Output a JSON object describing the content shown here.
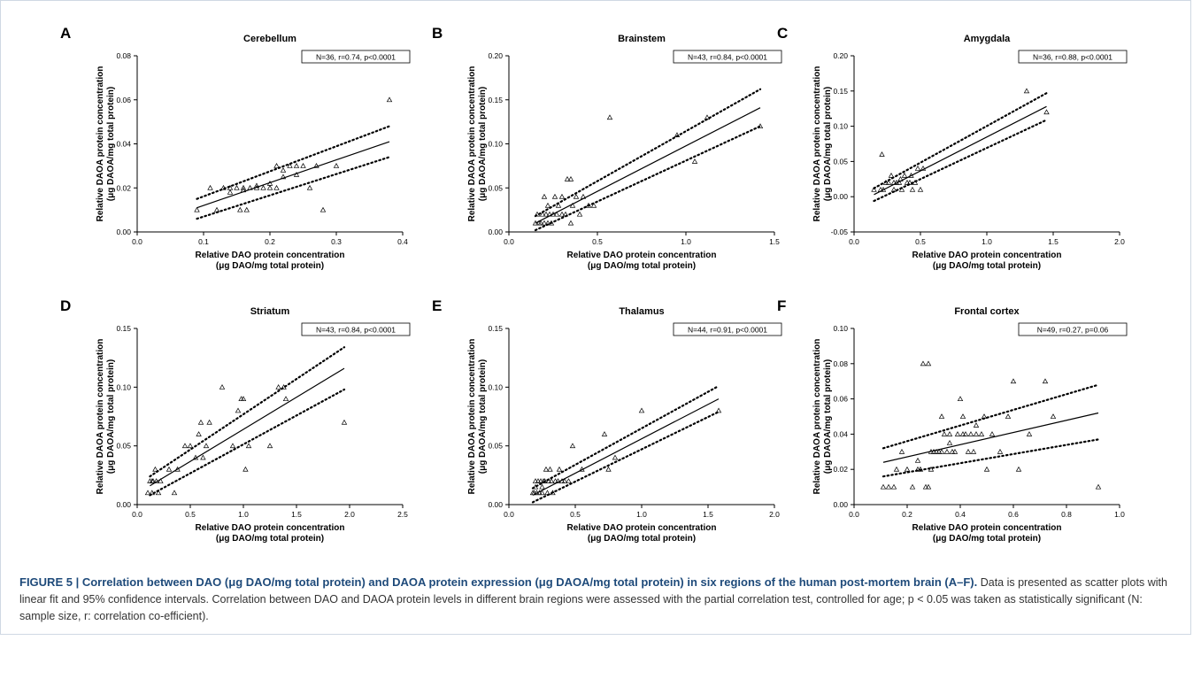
{
  "caption": {
    "label": "FIGURE 5 | ",
    "bold_text": "Correlation between DAO (μg DAO/mg total protein) and DAOA protein expression (μg DAOA/mg total protein) in six regions of the human post-mortem brain (A–F).",
    "body_text": " Data is presented as scatter plots with linear fit and 95% confidence intervals. Correlation between DAO and DAOA protein levels in different brain regions were assessed with the partial correlation test, controlled for age; p < 0.05 was taken as statistically significant (N: sample size, r: correlation co-efficient)."
  },
  "colors": {
    "caption_bold": "#1e4a7a",
    "frame": "#cfd8e3",
    "ink": "#000000"
  },
  "chart_data": [
    {
      "type": "scatter",
      "panel_letter": "A",
      "title": "Cerebellum",
      "xlabel": "Relative DAO protein concentration",
      "xlabel2": "(μg DAO/mg total protein)",
      "ylabel": "Relative DAOA protein concentration",
      "ylabel2": "(μg DAOA/mg total protein)",
      "annotation": "N=36, r=0.74, p<0.0001",
      "xlim": [
        0.0,
        0.4
      ],
      "ylim": [
        0.0,
        0.08
      ],
      "xticks": [
        "0.0",
        "0.1",
        "0.2",
        "0.3",
        "0.4"
      ],
      "yticks": [
        "0.00",
        "0.02",
        "0.04",
        "0.06",
        "0.08"
      ],
      "grid": false,
      "fit": [
        [
          0.09,
          0.011
        ],
        [
          0.38,
          0.041
        ]
      ],
      "ci_upper": [
        [
          0.09,
          0.015
        ],
        [
          0.38,
          0.048
        ]
      ],
      "ci_lower": [
        [
          0.09,
          0.006
        ],
        [
          0.38,
          0.034
        ]
      ],
      "points": [
        [
          0.09,
          0.01
        ],
        [
          0.11,
          0.02
        ],
        [
          0.12,
          0.01
        ],
        [
          0.13,
          0.02
        ],
        [
          0.14,
          0.02
        ],
        [
          0.15,
          0.02
        ],
        [
          0.155,
          0.01
        ],
        [
          0.16,
          0.02
        ],
        [
          0.165,
          0.01
        ],
        [
          0.17,
          0.02
        ],
        [
          0.18,
          0.02
        ],
        [
          0.19,
          0.02
        ],
        [
          0.2,
          0.02
        ],
        [
          0.21,
          0.03
        ],
        [
          0.21,
          0.02
        ],
        [
          0.22,
          0.025
        ],
        [
          0.23,
          0.03
        ],
        [
          0.24,
          0.03
        ],
        [
          0.25,
          0.03
        ],
        [
          0.26,
          0.02
        ],
        [
          0.27,
          0.03
        ],
        [
          0.28,
          0.01
        ],
        [
          0.3,
          0.03
        ],
        [
          0.38,
          0.06
        ],
        [
          0.2,
          0.022
        ],
        [
          0.22,
          0.028
        ],
        [
          0.24,
          0.026
        ],
        [
          0.16,
          0.019
        ],
        [
          0.18,
          0.021
        ],
        [
          0.14,
          0.018
        ]
      ]
    },
    {
      "type": "scatter",
      "panel_letter": "B",
      "title": "Brainstem",
      "xlabel": "Relative DAO protein concentration",
      "xlabel2": "(μg DAO/mg total protein)",
      "ylabel": "Relative DAOA protein concentration",
      "ylabel2": "(μg DAOA/mg total protein)",
      "annotation": "N=43, r=0.84, p<0.0001",
      "xlim": [
        0.0,
        1.5
      ],
      "ylim": [
        0.0,
        0.2
      ],
      "xticks": [
        "0.0",
        "0.5",
        "1.0",
        "1.5"
      ],
      "yticks": [
        "0.00",
        "0.05",
        "0.10",
        "0.15",
        "0.20"
      ],
      "grid": false,
      "fit": [
        [
          0.15,
          0.01
        ],
        [
          1.42,
          0.141
        ]
      ],
      "ci_upper": [
        [
          0.15,
          0.018
        ],
        [
          1.42,
          0.162
        ]
      ],
      "ci_lower": [
        [
          0.15,
          0.002
        ],
        [
          1.42,
          0.12
        ]
      ],
      "points": [
        [
          0.15,
          0.01
        ],
        [
          0.16,
          0.02
        ],
        [
          0.17,
          0.01
        ],
        [
          0.18,
          0.01
        ],
        [
          0.19,
          0.02
        ],
        [
          0.2,
          0.04
        ],
        [
          0.2,
          0.01
        ],
        [
          0.21,
          0.02
        ],
        [
          0.22,
          0.03
        ],
        [
          0.23,
          0.02
        ],
        [
          0.24,
          0.01
        ],
        [
          0.25,
          0.02
        ],
        [
          0.26,
          0.04
        ],
        [
          0.27,
          0.02
        ],
        [
          0.28,
          0.03
        ],
        [
          0.3,
          0.04
        ],
        [
          0.32,
          0.02
        ],
        [
          0.33,
          0.06
        ],
        [
          0.35,
          0.06
        ],
        [
          0.36,
          0.03
        ],
        [
          0.38,
          0.04
        ],
        [
          0.4,
          0.02
        ],
        [
          0.42,
          0.04
        ],
        [
          0.45,
          0.03
        ],
        [
          0.48,
          0.03
        ],
        [
          0.57,
          0.13
        ],
        [
          0.95,
          0.11
        ],
        [
          1.05,
          0.08
        ],
        [
          1.12,
          0.13
        ],
        [
          1.42,
          0.12
        ],
        [
          0.3,
          0.02
        ],
        [
          0.35,
          0.01
        ],
        [
          0.22,
          0.01
        ]
      ]
    },
    {
      "type": "scatter",
      "panel_letter": "C",
      "title": "Amygdala",
      "xlabel": "Relative DAO protein concentration",
      "xlabel2": "(μg DAO/mg total protein)",
      "ylabel": "Relative DAOA protein concentration",
      "ylabel2": "(μg DAOA/mg total protein)",
      "annotation": "N=36, r=0.88, p<0.0001",
      "xlim": [
        0.0,
        2.0
      ],
      "ylim": [
        -0.05,
        0.2
      ],
      "xticks": [
        "0.0",
        "0.5",
        "1.0",
        "1.5",
        "2.0"
      ],
      "yticks": [
        "-0.05",
        "0.00",
        "0.05",
        "0.10",
        "0.15",
        "0.20"
      ],
      "grid": false,
      "fit": [
        [
          0.15,
          0.003
        ],
        [
          1.45,
          0.128
        ]
      ],
      "ci_upper": [
        [
          0.15,
          0.012
        ],
        [
          1.45,
          0.147
        ]
      ],
      "ci_lower": [
        [
          0.15,
          -0.006
        ],
        [
          1.45,
          0.109
        ]
      ],
      "points": [
        [
          0.15,
          0.01
        ],
        [
          0.2,
          0.01
        ],
        [
          0.21,
          0.06
        ],
        [
          0.22,
          0.01
        ],
        [
          0.24,
          0.02
        ],
        [
          0.26,
          0.02
        ],
        [
          0.28,
          0.03
        ],
        [
          0.3,
          0.01
        ],
        [
          0.32,
          0.02
        ],
        [
          0.34,
          0.02
        ],
        [
          0.36,
          0.01
        ],
        [
          0.38,
          0.03
        ],
        [
          0.4,
          0.02
        ],
        [
          0.42,
          0.02
        ],
        [
          0.44,
          0.01
        ],
        [
          0.46,
          0.02
        ],
        [
          0.48,
          0.04
        ],
        [
          0.5,
          0.01
        ],
        [
          0.52,
          0.04
        ],
        [
          1.3,
          0.15
        ],
        [
          1.45,
          0.12
        ],
        [
          0.3,
          0.02
        ],
        [
          0.35,
          0.025
        ],
        [
          0.43,
          0.03
        ]
      ]
    },
    {
      "type": "scatter",
      "panel_letter": "D",
      "title": "Striatum",
      "xlabel": "Relative DAO protein concentration",
      "xlabel2": "(μg DAO/mg total protein)",
      "ylabel": "Relative DAOA protein concentration",
      "ylabel2": "(μg DAOA/mg total protein)",
      "annotation": "N=43, r=0.84, p<0.0001",
      "xlim": [
        0.0,
        2.5
      ],
      "ylim": [
        0.0,
        0.15
      ],
      "xticks": [
        "0.0",
        "0.5",
        "1.0",
        "1.5",
        "2.0",
        "2.5"
      ],
      "yticks": [
        "0.00",
        "0.05",
        "0.10",
        "0.15"
      ],
      "grid": false,
      "fit": [
        [
          0.12,
          0.016
        ],
        [
          1.95,
          0.116
        ]
      ],
      "ci_upper": [
        [
          0.12,
          0.024
        ],
        [
          1.95,
          0.134
        ]
      ],
      "ci_lower": [
        [
          0.12,
          0.008
        ],
        [
          1.95,
          0.098
        ]
      ],
      "points": [
        [
          0.1,
          0.01
        ],
        [
          0.12,
          0.02
        ],
        [
          0.14,
          0.01
        ],
        [
          0.15,
          0.02
        ],
        [
          0.17,
          0.03
        ],
        [
          0.18,
          0.02
        ],
        [
          0.2,
          0.01
        ],
        [
          0.22,
          0.02
        ],
        [
          0.3,
          0.03
        ],
        [
          0.35,
          0.01
        ],
        [
          0.38,
          0.03
        ],
        [
          0.45,
          0.05
        ],
        [
          0.5,
          0.05
        ],
        [
          0.55,
          0.04
        ],
        [
          0.58,
          0.06
        ],
        [
          0.6,
          0.07
        ],
        [
          0.62,
          0.04
        ],
        [
          0.65,
          0.05
        ],
        [
          0.68,
          0.07
        ],
        [
          0.8,
          0.1
        ],
        [
          0.9,
          0.05
        ],
        [
          0.95,
          0.08
        ],
        [
          0.98,
          0.09
        ],
        [
          1.0,
          0.09
        ],
        [
          1.02,
          0.03
        ],
        [
          1.05,
          0.05
        ],
        [
          1.25,
          0.05
        ],
        [
          1.33,
          0.1
        ],
        [
          1.38,
          0.1
        ],
        [
          1.4,
          0.09
        ],
        [
          1.95,
          0.07
        ],
        [
          0.14,
          0.02
        ]
      ]
    },
    {
      "type": "scatter",
      "panel_letter": "E",
      "title": "Thalamus",
      "xlabel": "Relative DAO protein concentration",
      "xlabel2": "(μg DAO/mg total protein)",
      "ylabel": "Relative DAOA protein concentration",
      "ylabel2": "(μg DAOA/mg total protein)",
      "annotation": "N=44, r=0.91, p<0.0001",
      "xlim": [
        0.0,
        2.0
      ],
      "ylim": [
        0.0,
        0.15
      ],
      "xticks": [
        "0.0",
        "0.5",
        "1.0",
        "1.5",
        "2.0"
      ],
      "yticks": [
        "0.00",
        "0.05",
        "0.10",
        "0.15"
      ],
      "grid": false,
      "fit": [
        [
          0.18,
          0.008
        ],
        [
          1.58,
          0.09
        ]
      ],
      "ci_upper": [
        [
          0.18,
          0.014
        ],
        [
          1.58,
          0.101
        ]
      ],
      "ci_lower": [
        [
          0.18,
          0.002
        ],
        [
          1.58,
          0.079
        ]
      ],
      "points": [
        [
          0.18,
          0.01
        ],
        [
          0.19,
          0.01
        ],
        [
          0.2,
          0.02
        ],
        [
          0.21,
          0.01
        ],
        [
          0.22,
          0.02
        ],
        [
          0.23,
          0.01
        ],
        [
          0.24,
          0.02
        ],
        [
          0.25,
          0.01
        ],
        [
          0.26,
          0.02
        ],
        [
          0.27,
          0.02
        ],
        [
          0.28,
          0.03
        ],
        [
          0.29,
          0.01
        ],
        [
          0.3,
          0.02
        ],
        [
          0.31,
          0.03
        ],
        [
          0.32,
          0.02
        ],
        [
          0.33,
          0.01
        ],
        [
          0.35,
          0.02
        ],
        [
          0.37,
          0.02
        ],
        [
          0.38,
          0.03
        ],
        [
          0.4,
          0.02
        ],
        [
          0.42,
          0.02
        ],
        [
          0.45,
          0.02
        ],
        [
          0.48,
          0.05
        ],
        [
          0.55,
          0.03
        ],
        [
          0.72,
          0.06
        ],
        [
          0.75,
          0.03
        ],
        [
          0.8,
          0.04
        ],
        [
          1.0,
          0.08
        ],
        [
          1.58,
          0.08
        ],
        [
          0.2,
          0.015
        ],
        [
          0.25,
          0.015
        ]
      ]
    },
    {
      "type": "scatter",
      "panel_letter": "F",
      "title": "Frontal cortex",
      "xlabel": "Relative DAO protein concentration",
      "xlabel2": "(μg DAO/mg total protein)",
      "ylabel": "Relative DAOA protein concentration",
      "ylabel2": "(μg DAOA/mg total protein)",
      "annotation": "N=49, r=0.27, p=0.06",
      "xlim": [
        0.0,
        1.0
      ],
      "ylim": [
        0.0,
        0.1
      ],
      "xticks": [
        "0.0",
        "0.2",
        "0.4",
        "0.6",
        "0.8",
        "1.0"
      ],
      "yticks": [
        "0.00",
        "0.02",
        "0.04",
        "0.06",
        "0.08",
        "0.10"
      ],
      "grid": false,
      "fit": [
        [
          0.11,
          0.024
        ],
        [
          0.92,
          0.052
        ]
      ],
      "ci_upper": [
        [
          0.11,
          0.032
        ],
        [
          0.92,
          0.068
        ]
      ],
      "ci_lower": [
        [
          0.11,
          0.016
        ],
        [
          0.92,
          0.037
        ]
      ],
      "points": [
        [
          0.11,
          0.01
        ],
        [
          0.13,
          0.01
        ],
        [
          0.15,
          0.01
        ],
        [
          0.16,
          0.02
        ],
        [
          0.18,
          0.03
        ],
        [
          0.2,
          0.02
        ],
        [
          0.22,
          0.01
        ],
        [
          0.24,
          0.02
        ],
        [
          0.25,
          0.02
        ],
        [
          0.26,
          0.08
        ],
        [
          0.27,
          0.01
        ],
        [
          0.28,
          0.08
        ],
        [
          0.28,
          0.01
        ],
        [
          0.29,
          0.02
        ],
        [
          0.3,
          0.03
        ],
        [
          0.31,
          0.03
        ],
        [
          0.32,
          0.03
        ],
        [
          0.33,
          0.05
        ],
        [
          0.34,
          0.04
        ],
        [
          0.35,
          0.03
        ],
        [
          0.36,
          0.04
        ],
        [
          0.37,
          0.03
        ],
        [
          0.38,
          0.03
        ],
        [
          0.39,
          0.04
        ],
        [
          0.4,
          0.06
        ],
        [
          0.41,
          0.04
        ],
        [
          0.41,
          0.05
        ],
        [
          0.42,
          0.04
        ],
        [
          0.43,
          0.03
        ],
        [
          0.44,
          0.04
        ],
        [
          0.45,
          0.03
        ],
        [
          0.46,
          0.04
        ],
        [
          0.48,
          0.04
        ],
        [
          0.49,
          0.05
        ],
        [
          0.5,
          0.02
        ],
        [
          0.52,
          0.04
        ],
        [
          0.55,
          0.03
        ],
        [
          0.58,
          0.05
        ],
        [
          0.6,
          0.07
        ],
        [
          0.62,
          0.02
        ],
        [
          0.66,
          0.04
        ],
        [
          0.72,
          0.07
        ],
        [
          0.75,
          0.05
        ],
        [
          0.92,
          0.01
        ],
        [
          0.24,
          0.025
        ],
        [
          0.33,
          0.03
        ],
        [
          0.36,
          0.035
        ],
        [
          0.46,
          0.045
        ],
        [
          0.29,
          0.03
        ]
      ]
    }
  ]
}
